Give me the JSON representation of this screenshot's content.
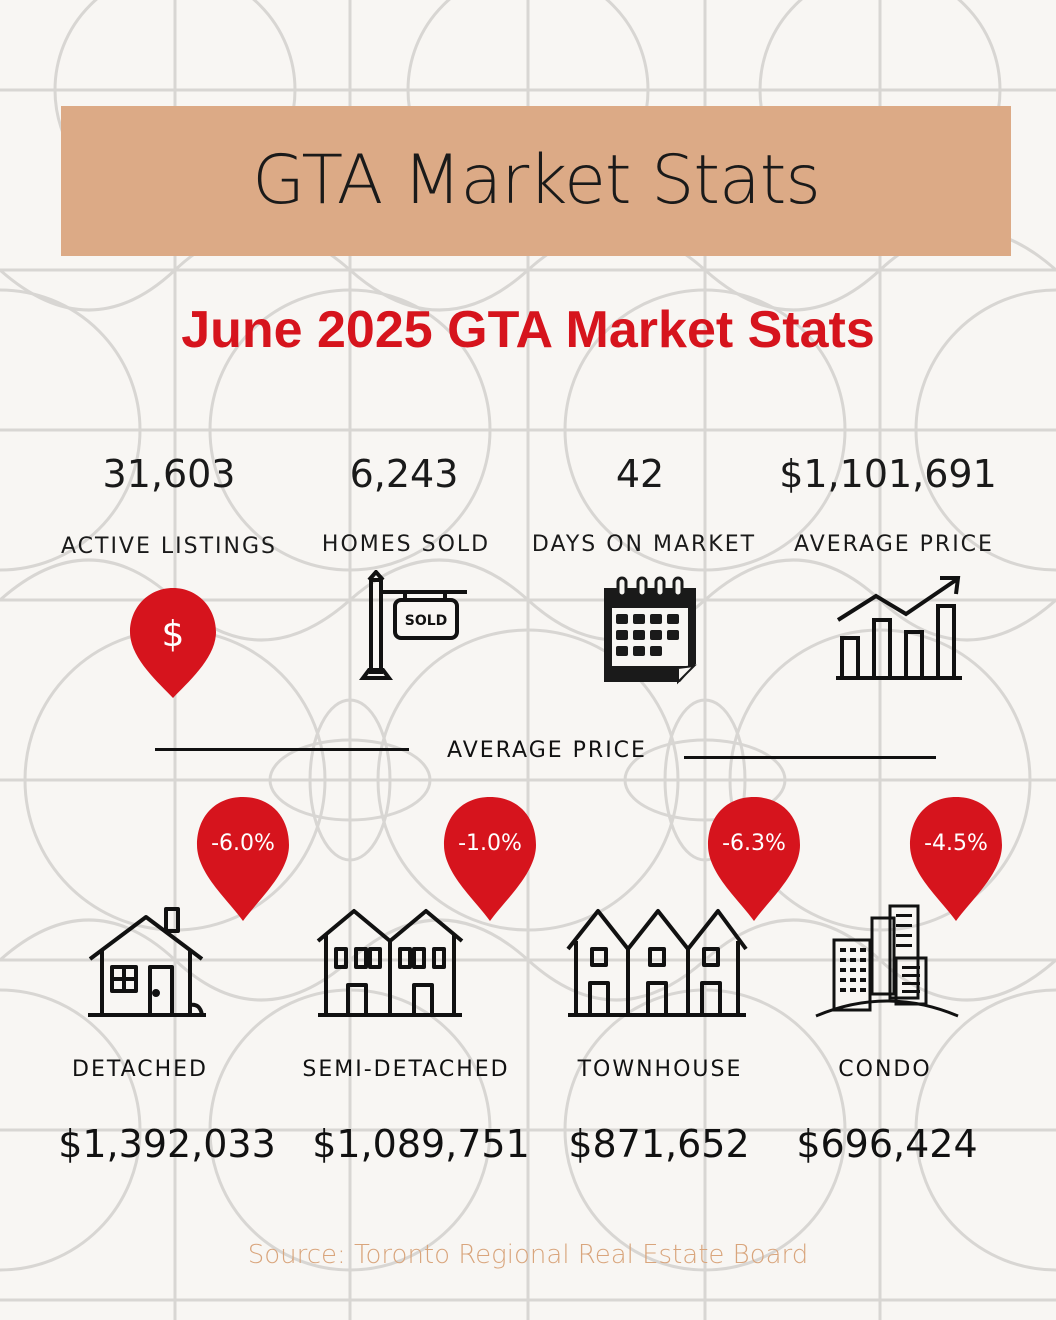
{
  "header": {
    "title": "GTA Market Stats"
  },
  "subtitle": "June 2025 GTA Market Stats",
  "stats": [
    {
      "value": "31,603",
      "label": "ACTIVE LISTINGS",
      "icon": "dollar-pin-icon"
    },
    {
      "value": "6,243",
      "label": "HOMES SOLD",
      "icon": "sold-sign-icon",
      "sign_text": "SOLD"
    },
    {
      "value": "42",
      "label": "DAYS ON MARKET",
      "icon": "calendar-icon"
    },
    {
      "value": "$1,101,691",
      "label": "AVERAGE PRICE",
      "icon": "growth-chart-icon"
    }
  ],
  "section_label": "AVERAGE PRICE",
  "property_types": [
    {
      "label": "DETACHED",
      "price": "$1,392,033",
      "change": "-6.0%",
      "icon": "house-icon"
    },
    {
      "label": "SEMI-DETACHED",
      "price": "$1,089,751",
      "change": "-1.0%",
      "icon": "semi-detached-icon"
    },
    {
      "label": "TOWNHOUSE",
      "price": "$871,652",
      "change": "-6.3%",
      "icon": "townhouse-icon"
    },
    {
      "label": "CONDO",
      "price": "$696,424",
      "change": "-4.5%",
      "icon": "condo-icon"
    }
  ],
  "source": "Source: Toronto Regional Real Estate Board",
  "colors": {
    "accent_red": "#d6141d",
    "band_tan": "#dcaa86",
    "source_tan": "#d9a57c",
    "background": "#f8f6f3"
  }
}
